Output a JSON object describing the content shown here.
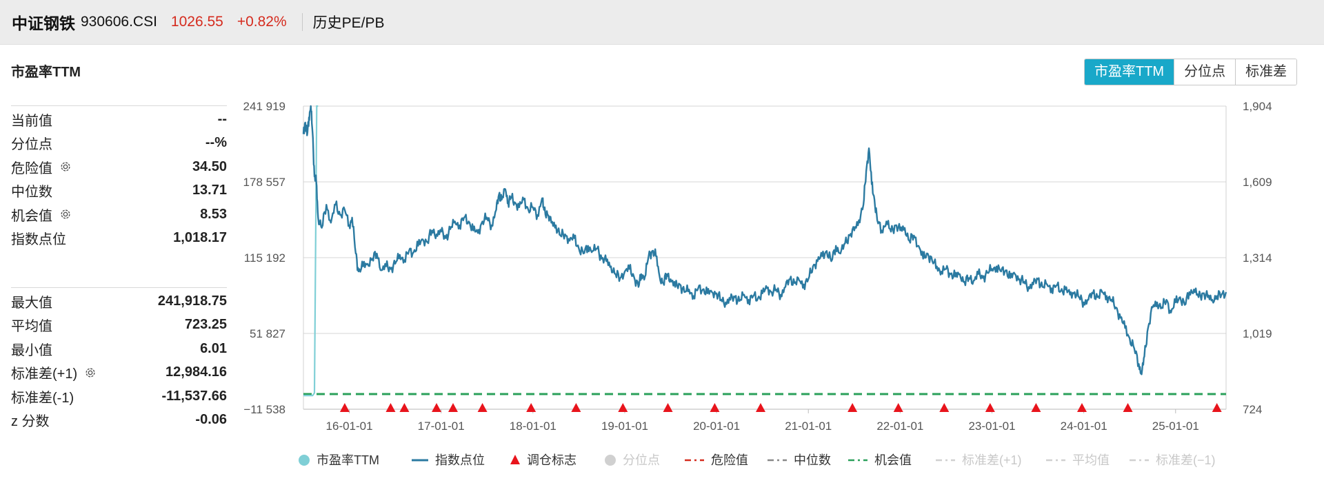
{
  "header": {
    "index_name": "中证钢铁",
    "index_code": "930606.CSI",
    "price": "1026.55",
    "change": "+0.82%",
    "section_link": "历史PE/PB"
  },
  "panel": {
    "title": "市盈率TTM",
    "tabs": [
      {
        "label": "市盈率TTM",
        "active": true
      },
      {
        "label": "分位点",
        "active": false
      },
      {
        "label": "标准差",
        "active": false
      }
    ]
  },
  "stats_top": [
    {
      "label": "当前值",
      "value": "--",
      "gear": false
    },
    {
      "label": "分位点",
      "value": "--%",
      "gear": false
    },
    {
      "label": "危险值",
      "value": "34.50",
      "gear": true
    },
    {
      "label": "中位数",
      "value": "13.71",
      "gear": false
    },
    {
      "label": "机会值",
      "value": "8.53",
      "gear": true
    },
    {
      "label": "指数点位",
      "value": "1,018.17",
      "gear": false
    }
  ],
  "stats_bottom": [
    {
      "label": "最大值",
      "value": "241,918.75",
      "gear": false
    },
    {
      "label": "平均值",
      "value": "723.25",
      "gear": false
    },
    {
      "label": "最小值",
      "value": "6.01",
      "gear": false
    },
    {
      "label": "标准差(+1)",
      "value": "12,984.16",
      "gear": true
    },
    {
      "label": "标准差(-1)",
      "value": "-11,537.66",
      "gear": false
    },
    {
      "label": "z 分数",
      "value": "-0.06",
      "gear": false
    }
  ],
  "colors": {
    "pe": "#7fcfd6",
    "index": "#2b7aa1",
    "marker": "#e8141c",
    "opportunity": "#2aa05a",
    "danger": "#d52b1e",
    "median": "#888888",
    "grid": "#e3e3e3",
    "disabled": "#c8c8c8"
  },
  "chart_data": {
    "type": "line",
    "left_axis": {
      "ticks": [
        "241 919",
        "178 557",
        "115 192",
        "51 827",
        "−11 538"
      ],
      "range": [
        -11538,
        241919
      ]
    },
    "right_axis": {
      "ticks": [
        "1,904",
        "1,609",
        "1,314",
        "1,019",
        "724"
      ],
      "range": [
        724,
        1904
      ]
    },
    "x_ticks": [
      "16-01-01",
      "17-01-01",
      "18-01-01",
      "19-01-01",
      "20-01-01",
      "21-01-01",
      "22-01-01",
      "23-01-01",
      "24-01-01",
      "25-01-01"
    ],
    "x_range": [
      2015.5,
      2025.55
    ],
    "series": [
      {
        "name": "市盈率TTM",
        "axis": "left",
        "points": [
          [
            2015.5,
            -100
          ],
          [
            2015.6,
            -100
          ],
          [
            2015.62,
            2000
          ],
          [
            2015.645,
            241919
          ],
          [
            2015.66,
            241919
          ]
        ]
      },
      {
        "name": "指数点位",
        "axis": "right",
        "points": [
          [
            2015.5,
            1795
          ],
          [
            2015.52,
            1840
          ],
          [
            2015.54,
            1790
          ],
          [
            2015.56,
            1860
          ],
          [
            2015.58,
            1904
          ],
          [
            2015.6,
            1800
          ],
          [
            2015.62,
            1630
          ],
          [
            2015.64,
            1610
          ],
          [
            2015.66,
            1470
          ],
          [
            2015.7,
            1430
          ],
          [
            2015.75,
            1520
          ],
          [
            2015.8,
            1450
          ],
          [
            2015.85,
            1520
          ],
          [
            2015.9,
            1480
          ],
          [
            2015.95,
            1500
          ],
          [
            2016.0,
            1440
          ],
          [
            2016.03,
            1470
          ],
          [
            2016.07,
            1330
          ],
          [
            2016.1,
            1260
          ],
          [
            2016.15,
            1280
          ],
          [
            2016.2,
            1290
          ],
          [
            2016.25,
            1310
          ],
          [
            2016.3,
            1330
          ],
          [
            2016.35,
            1265
          ],
          [
            2016.4,
            1280
          ],
          [
            2016.45,
            1270
          ],
          [
            2016.5,
            1290
          ],
          [
            2016.55,
            1325
          ],
          [
            2016.6,
            1305
          ],
          [
            2016.65,
            1340
          ],
          [
            2016.7,
            1335
          ],
          [
            2016.75,
            1360
          ],
          [
            2016.8,
            1385
          ],
          [
            2016.85,
            1375
          ],
          [
            2016.9,
            1420
          ],
          [
            2016.95,
            1405
          ],
          [
            2017.0,
            1415
          ],
          [
            2017.05,
            1390
          ],
          [
            2017.1,
            1425
          ],
          [
            2017.15,
            1455
          ],
          [
            2017.2,
            1440
          ],
          [
            2017.25,
            1470
          ],
          [
            2017.3,
            1455
          ],
          [
            2017.35,
            1420
          ],
          [
            2017.4,
            1410
          ],
          [
            2017.45,
            1455
          ],
          [
            2017.5,
            1470
          ],
          [
            2017.55,
            1440
          ],
          [
            2017.6,
            1500
          ],
          [
            2017.63,
            1560
          ],
          [
            2017.66,
            1540
          ],
          [
            2017.7,
            1580
          ],
          [
            2017.73,
            1530
          ],
          [
            2017.76,
            1550
          ],
          [
            2017.8,
            1530
          ],
          [
            2017.85,
            1510
          ],
          [
            2017.9,
            1540
          ],
          [
            2017.95,
            1500
          ],
          [
            2018.0,
            1510
          ],
          [
            2018.05,
            1480
          ],
          [
            2018.1,
            1545
          ],
          [
            2018.12,
            1500
          ],
          [
            2018.16,
            1480
          ],
          [
            2018.2,
            1450
          ],
          [
            2018.25,
            1440
          ],
          [
            2018.3,
            1400
          ],
          [
            2018.35,
            1405
          ],
          [
            2018.4,
            1380
          ],
          [
            2018.45,
            1390
          ],
          [
            2018.5,
            1350
          ],
          [
            2018.55,
            1330
          ],
          [
            2018.6,
            1360
          ],
          [
            2018.65,
            1340
          ],
          [
            2018.7,
            1350
          ],
          [
            2018.75,
            1310
          ],
          [
            2018.8,
            1300
          ],
          [
            2018.85,
            1280
          ],
          [
            2018.9,
            1250
          ],
          [
            2018.95,
            1235
          ],
          [
            2019.0,
            1260
          ],
          [
            2019.05,
            1270
          ],
          [
            2019.1,
            1240
          ],
          [
            2019.15,
            1200
          ],
          [
            2019.18,
            1250
          ],
          [
            2019.22,
            1240
          ],
          [
            2019.26,
            1320
          ],
          [
            2019.3,
            1340
          ],
          [
            2019.34,
            1320
          ],
          [
            2019.38,
            1240
          ],
          [
            2019.42,
            1215
          ],
          [
            2019.46,
            1250
          ],
          [
            2019.5,
            1230
          ],
          [
            2019.55,
            1200
          ],
          [
            2019.6,
            1210
          ],
          [
            2019.65,
            1180
          ],
          [
            2019.7,
            1190
          ],
          [
            2019.75,
            1165
          ],
          [
            2019.8,
            1195
          ],
          [
            2019.85,
            1190
          ],
          [
            2019.9,
            1175
          ],
          [
            2019.95,
            1180
          ],
          [
            2020.0,
            1175
          ],
          [
            2020.05,
            1150
          ],
          [
            2020.1,
            1140
          ],
          [
            2020.15,
            1150
          ],
          [
            2020.2,
            1160
          ],
          [
            2020.25,
            1145
          ],
          [
            2020.3,
            1170
          ],
          [
            2020.35,
            1150
          ],
          [
            2020.4,
            1165
          ],
          [
            2020.45,
            1155
          ],
          [
            2020.5,
            1175
          ],
          [
            2020.55,
            1195
          ],
          [
            2020.6,
            1180
          ],
          [
            2020.65,
            1190
          ],
          [
            2020.7,
            1170
          ],
          [
            2020.75,
            1200
          ],
          [
            2020.8,
            1230
          ],
          [
            2020.85,
            1215
          ],
          [
            2020.9,
            1225
          ],
          [
            2020.95,
            1210
          ],
          [
            2021.0,
            1230
          ],
          [
            2021.05,
            1280
          ],
          [
            2021.1,
            1300
          ],
          [
            2021.15,
            1320
          ],
          [
            2021.2,
            1340
          ],
          [
            2021.25,
            1300
          ],
          [
            2021.3,
            1360
          ],
          [
            2021.35,
            1330
          ],
          [
            2021.4,
            1370
          ],
          [
            2021.45,
            1400
          ],
          [
            2021.5,
            1420
          ],
          [
            2021.55,
            1460
          ],
          [
            2021.6,
            1520
          ],
          [
            2021.63,
            1650
          ],
          [
            2021.66,
            1740
          ],
          [
            2021.69,
            1600
          ],
          [
            2021.72,
            1540
          ],
          [
            2021.75,
            1460
          ],
          [
            2021.8,
            1420
          ],
          [
            2021.85,
            1455
          ],
          [
            2021.9,
            1415
          ],
          [
            2021.95,
            1440
          ],
          [
            2022.0,
            1420
          ],
          [
            2022.05,
            1430
          ],
          [
            2022.1,
            1380
          ],
          [
            2022.15,
            1400
          ],
          [
            2022.2,
            1360
          ],
          [
            2022.25,
            1310
          ],
          [
            2022.3,
            1330
          ],
          [
            2022.35,
            1300
          ],
          [
            2022.4,
            1280
          ],
          [
            2022.45,
            1260
          ],
          [
            2022.5,
            1270
          ],
          [
            2022.55,
            1250
          ],
          [
            2022.6,
            1240
          ],
          [
            2022.65,
            1250
          ],
          [
            2022.7,
            1220
          ],
          [
            2022.75,
            1235
          ],
          [
            2022.8,
            1225
          ],
          [
            2022.85,
            1250
          ],
          [
            2022.9,
            1235
          ],
          [
            2022.95,
            1255
          ],
          [
            2023.0,
            1270
          ],
          [
            2023.05,
            1280
          ],
          [
            2023.1,
            1260
          ],
          [
            2023.15,
            1265
          ],
          [
            2023.2,
            1235
          ],
          [
            2023.25,
            1250
          ],
          [
            2023.3,
            1230
          ],
          [
            2023.35,
            1220
          ],
          [
            2023.4,
            1200
          ],
          [
            2023.45,
            1210
          ],
          [
            2023.5,
            1230
          ],
          [
            2023.55,
            1200
          ],
          [
            2023.6,
            1210
          ],
          [
            2023.65,
            1195
          ],
          [
            2023.7,
            1205
          ],
          [
            2023.75,
            1185
          ],
          [
            2023.8,
            1190
          ],
          [
            2023.85,
            1170
          ],
          [
            2023.9,
            1180
          ],
          [
            2023.95,
            1160
          ],
          [
            2024.0,
            1140
          ],
          [
            2024.05,
            1150
          ],
          [
            2024.1,
            1175
          ],
          [
            2024.15,
            1160
          ],
          [
            2024.2,
            1180
          ],
          [
            2024.25,
            1165
          ],
          [
            2024.3,
            1150
          ],
          [
            2024.35,
            1120
          ],
          [
            2024.4,
            1080
          ],
          [
            2024.45,
            1040
          ],
          [
            2024.5,
            1000
          ],
          [
            2024.55,
            960
          ],
          [
            2024.6,
            900
          ],
          [
            2024.63,
            860
          ],
          [
            2024.66,
            930
          ],
          [
            2024.7,
            1040
          ],
          [
            2024.75,
            1120
          ],
          [
            2024.8,
            1140
          ],
          [
            2024.85,
            1120
          ],
          [
            2024.9,
            1150
          ],
          [
            2024.95,
            1100
          ],
          [
            2025.0,
            1140
          ],
          [
            2025.05,
            1160
          ],
          [
            2025.1,
            1130
          ],
          [
            2025.15,
            1180
          ],
          [
            2025.2,
            1190
          ],
          [
            2025.25,
            1160
          ],
          [
            2025.3,
            1175
          ],
          [
            2025.35,
            1160
          ],
          [
            2025.4,
            1150
          ],
          [
            2025.45,
            1165
          ],
          [
            2025.5,
            1170
          ],
          [
            2025.55,
            1180
          ]
        ]
      },
      {
        "name": "机会值",
        "axis": "left",
        "value": 8.53
      }
    ],
    "rebalance_markers_x": [
      2015.95,
      2016.45,
      2016.6,
      2016.95,
      2017.13,
      2017.45,
      2017.98,
      2018.47,
      2018.98,
      2019.47,
      2019.98,
      2020.48,
      2021.48,
      2021.98,
      2022.48,
      2022.98,
      2023.48,
      2023.98,
      2024.48,
      2025.45
    ],
    "legend": [
      {
        "label": "市盈率TTM",
        "kind": "circle",
        "enabled": true
      },
      {
        "label": "指数点位",
        "kind": "line",
        "enabled": true
      },
      {
        "label": "调仓标志",
        "kind": "triangle",
        "enabled": true
      },
      {
        "label": "分位点",
        "kind": "circle",
        "enabled": false
      },
      {
        "label": "危险值",
        "kind": "dash-red",
        "enabled": true
      },
      {
        "label": "中位数",
        "kind": "dash-gray",
        "enabled": true
      },
      {
        "label": "机会值",
        "kind": "dash-green",
        "enabled": true
      },
      {
        "label": "标准差(+1)",
        "kind": "dash-gray",
        "enabled": false
      },
      {
        "label": "平均值",
        "kind": "dash-gray",
        "enabled": false
      },
      {
        "label": "标准差(−1)",
        "kind": "dash-gray",
        "enabled": false
      }
    ]
  }
}
